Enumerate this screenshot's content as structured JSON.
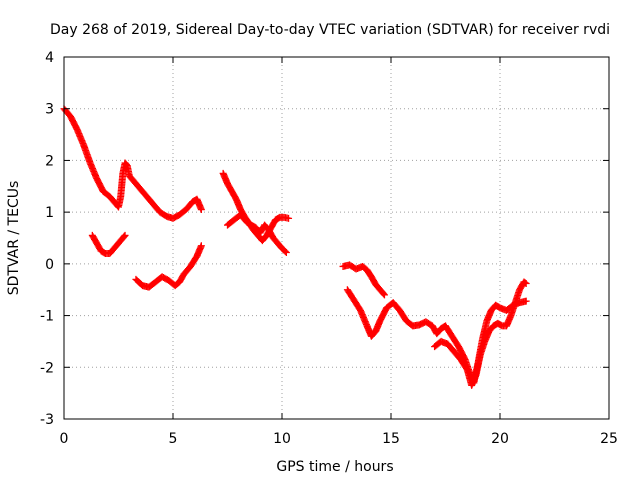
{
  "chart_data": {
    "type": "scatter",
    "title": "Day 268 of 2019, Sidereal Day-to-day VTEC variation (SDTVAR) for receiver rvdi",
    "xlabel": "GPS time / hours",
    "ylabel": "SDTVAR / TECUs",
    "xlim": [
      0,
      25
    ],
    "ylim": [
      -3,
      4
    ],
    "xticks": [
      0,
      5,
      10,
      15,
      20,
      25
    ],
    "yticks": [
      -3,
      -2,
      -1,
      0,
      1,
      2,
      3,
      4
    ],
    "grid": true,
    "marker": "+",
    "color": "#ff0000",
    "segments": [
      {
        "points": [
          [
            0.0,
            3.0
          ],
          [
            0.3,
            2.85
          ],
          [
            0.6,
            2.6
          ],
          [
            0.9,
            2.3
          ],
          [
            1.2,
            1.95
          ],
          [
            1.5,
            1.65
          ],
          [
            1.8,
            1.4
          ],
          [
            2.1,
            1.3
          ],
          [
            2.3,
            1.2
          ],
          [
            2.5,
            1.1
          ],
          [
            2.6,
            1.3
          ],
          [
            2.7,
            1.75
          ],
          [
            2.8,
            1.95
          ],
          [
            2.9,
            1.9
          ],
          [
            3.0,
            1.7
          ],
          [
            3.2,
            1.6
          ],
          [
            3.5,
            1.45
          ],
          [
            3.8,
            1.3
          ],
          [
            4.1,
            1.15
          ],
          [
            4.4,
            1.0
          ],
          [
            4.7,
            0.92
          ],
          [
            5.0,
            0.88
          ],
          [
            5.3,
            0.95
          ],
          [
            5.6,
            1.05
          ],
          [
            5.9,
            1.2
          ],
          [
            6.1,
            1.25
          ],
          [
            6.3,
            1.05
          ]
        ]
      },
      {
        "points": [
          [
            1.3,
            0.55
          ],
          [
            1.5,
            0.4
          ],
          [
            1.7,
            0.25
          ],
          [
            1.9,
            0.2
          ],
          [
            2.1,
            0.2
          ],
          [
            2.3,
            0.3
          ],
          [
            2.5,
            0.4
          ],
          [
            2.7,
            0.5
          ],
          [
            2.8,
            0.55
          ]
        ]
      },
      {
        "points": [
          [
            3.3,
            -0.3
          ],
          [
            3.6,
            -0.42
          ],
          [
            3.9,
            -0.45
          ],
          [
            4.2,
            -0.35
          ],
          [
            4.5,
            -0.25
          ],
          [
            4.8,
            -0.32
          ],
          [
            5.1,
            -0.42
          ],
          [
            5.3,
            -0.35
          ],
          [
            5.5,
            -0.2
          ],
          [
            5.8,
            -0.05
          ],
          [
            6.1,
            0.15
          ],
          [
            6.3,
            0.35
          ]
        ]
      },
      {
        "points": [
          [
            7.3,
            1.75
          ],
          [
            7.5,
            1.55
          ],
          [
            7.7,
            1.4
          ],
          [
            7.9,
            1.25
          ],
          [
            8.1,
            1.05
          ],
          [
            8.3,
            0.9
          ],
          [
            8.5,
            0.78
          ],
          [
            8.7,
            0.65
          ],
          [
            8.9,
            0.55
          ],
          [
            9.1,
            0.45
          ],
          [
            9.3,
            0.55
          ],
          [
            9.5,
            0.7
          ],
          [
            9.7,
            0.85
          ],
          [
            9.9,
            0.9
          ],
          [
            10.1,
            0.9
          ],
          [
            10.3,
            0.88
          ]
        ]
      },
      {
        "points": [
          [
            7.5,
            0.75
          ],
          [
            7.8,
            0.85
          ],
          [
            8.1,
            0.95
          ],
          [
            8.4,
            0.8
          ],
          [
            8.6,
            0.75
          ],
          [
            8.8,
            0.7
          ],
          [
            9.0,
            0.6
          ],
          [
            9.2,
            0.75
          ],
          [
            9.4,
            0.65
          ],
          [
            9.6,
            0.5
          ],
          [
            9.8,
            0.4
          ],
          [
            10.0,
            0.3
          ],
          [
            10.2,
            0.22
          ]
        ]
      },
      {
        "points": [
          [
            12.8,
            -0.05
          ],
          [
            13.1,
            -0.02
          ],
          [
            13.4,
            -0.1
          ],
          [
            13.7,
            -0.05
          ],
          [
            13.9,
            -0.12
          ],
          [
            14.1,
            -0.25
          ],
          [
            14.3,
            -0.4
          ],
          [
            14.5,
            -0.5
          ],
          [
            14.7,
            -0.6
          ]
        ]
      },
      {
        "points": [
          [
            13.0,
            -0.5
          ],
          [
            13.3,
            -0.7
          ],
          [
            13.6,
            -0.9
          ],
          [
            13.9,
            -1.2
          ],
          [
            14.1,
            -1.4
          ],
          [
            14.3,
            -1.3
          ],
          [
            14.5,
            -1.1
          ],
          [
            14.8,
            -0.85
          ],
          [
            15.1,
            -0.75
          ],
          [
            15.4,
            -0.9
          ],
          [
            15.7,
            -1.1
          ],
          [
            16.0,
            -1.2
          ],
          [
            16.3,
            -1.18
          ],
          [
            16.6,
            -1.12
          ],
          [
            16.9,
            -1.2
          ],
          [
            17.1,
            -1.35
          ],
          [
            17.3,
            -1.25
          ],
          [
            17.5,
            -1.2
          ],
          [
            17.8,
            -1.4
          ],
          [
            18.1,
            -1.6
          ],
          [
            18.4,
            -1.85
          ],
          [
            18.6,
            -2.1
          ],
          [
            18.8,
            -2.3
          ],
          [
            19.0,
            -1.9
          ],
          [
            19.2,
            -1.45
          ],
          [
            19.4,
            -1.1
          ],
          [
            19.6,
            -0.9
          ],
          [
            19.8,
            -0.8
          ],
          [
            20.0,
            -0.85
          ],
          [
            20.3,
            -0.9
          ],
          [
            20.6,
            -0.8
          ],
          [
            20.9,
            -0.75
          ],
          [
            21.2,
            -0.72
          ]
        ]
      },
      {
        "points": [
          [
            17.0,
            -1.6
          ],
          [
            17.3,
            -1.5
          ],
          [
            17.6,
            -1.55
          ],
          [
            17.9,
            -1.7
          ],
          [
            18.2,
            -1.85
          ],
          [
            18.5,
            -2.05
          ],
          [
            18.7,
            -2.35
          ],
          [
            18.9,
            -2.15
          ],
          [
            19.1,
            -1.75
          ],
          [
            19.3,
            -1.5
          ],
          [
            19.5,
            -1.3
          ],
          [
            19.7,
            -1.2
          ],
          [
            19.9,
            -1.15
          ],
          [
            20.1,
            -1.2
          ],
          [
            20.3,
            -1.2
          ],
          [
            20.5,
            -1.0
          ],
          [
            20.7,
            -0.75
          ],
          [
            20.9,
            -0.5
          ],
          [
            21.1,
            -0.35
          ],
          [
            21.2,
            -0.38
          ]
        ]
      }
    ]
  }
}
